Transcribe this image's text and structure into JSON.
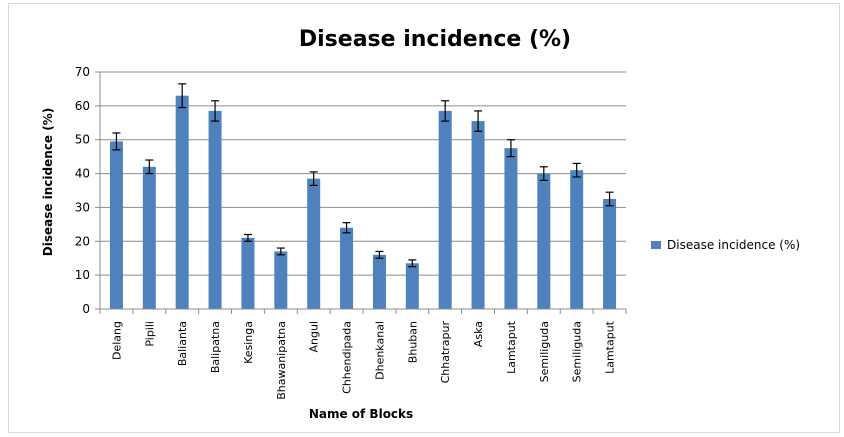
{
  "chart_data": {
    "type": "bar",
    "title": "Disease incidence (%)",
    "xlabel": "Name of Blocks",
    "ylabel": "Disease incidence (%)",
    "ylim": [
      0,
      70
    ],
    "yticks": [
      0,
      10,
      20,
      30,
      40,
      50,
      60,
      70
    ],
    "grid": true,
    "legend_position": "right",
    "bar_color": "#4f81bd",
    "categories": [
      "Delang",
      "Pipili",
      "Balianta",
      "Balipatna",
      "Kesinga",
      "Bhawanipatna",
      "Angul",
      "Chhendipada",
      "Dhenkanal",
      "Bhuban",
      "Chhatrapur",
      "Aska",
      "Lamtaput",
      "Semiliguda",
      "Semiliguda",
      "Lamtaput"
    ],
    "series": [
      {
        "name": "Disease incidence (%)",
        "values": [
          49.5,
          42,
          63,
          58.5,
          21,
          17,
          38.5,
          24,
          16,
          13.5,
          58.5,
          55.5,
          47.5,
          40,
          41,
          32.5
        ],
        "errors": [
          2.5,
          2,
          3.5,
          3,
          1,
          1,
          2,
          1.5,
          1,
          1,
          3,
          3,
          2.5,
          2,
          2,
          2
        ]
      }
    ]
  }
}
